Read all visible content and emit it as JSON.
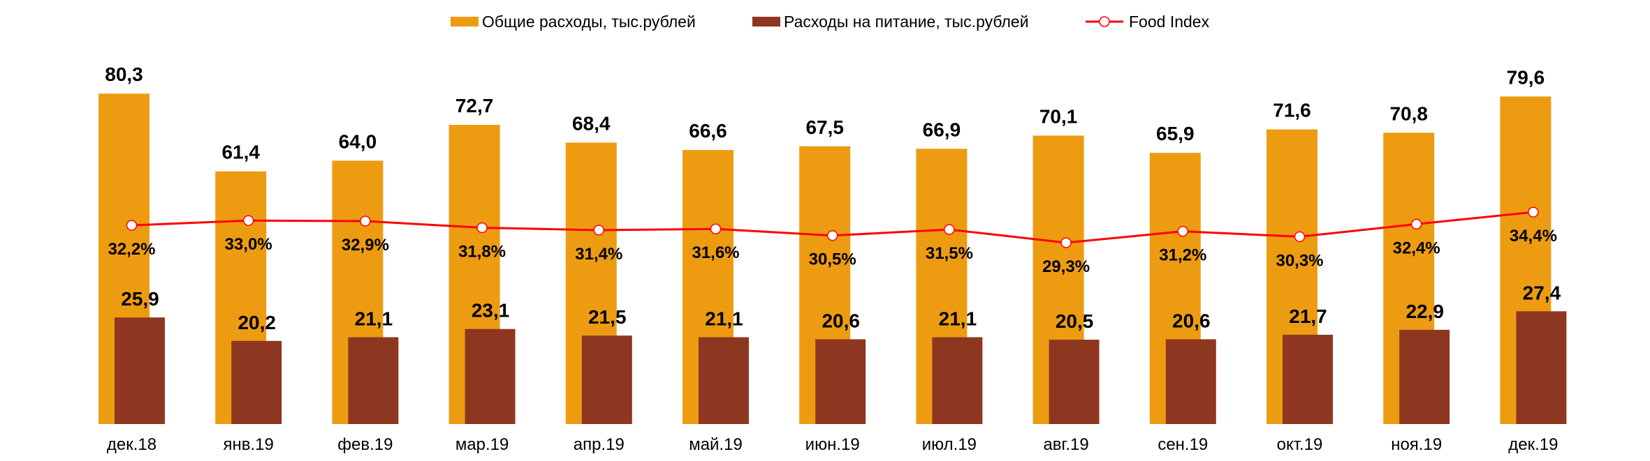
{
  "chart_data": {
    "type": "bar",
    "title": "",
    "xlabel": "",
    "ylabel": "",
    "categories": [
      "дек.18",
      "янв.19",
      "фев.19",
      "мар.19",
      "апр.19",
      "май.19",
      "июн.19",
      "июл.19",
      "авг.19",
      "сен.19",
      "окт.19",
      "ноя.19",
      "дек.19"
    ],
    "series": [
      {
        "name": "Общие расходы, тыс.рублей",
        "type": "bar",
        "color": "#ED9C11",
        "values": [
          80.3,
          61.4,
          64.0,
          72.7,
          68.4,
          66.6,
          67.5,
          66.9,
          70.1,
          65.9,
          71.6,
          70.8,
          79.6
        ],
        "labels": [
          "80,3",
          "61,4",
          "64,0",
          "72,7",
          "68,4",
          "66,6",
          "67,5",
          "66,9",
          "70,1",
          "65,9",
          "71,6",
          "70,8",
          "79,6"
        ]
      },
      {
        "name": "Расходы на питание, тыс.рублей",
        "type": "bar",
        "color": "#8E3720",
        "values": [
          25.9,
          20.2,
          21.1,
          23.1,
          21.5,
          21.1,
          20.6,
          21.1,
          20.5,
          20.6,
          21.7,
          22.9,
          27.4
        ],
        "labels": [
          "25,9",
          "20,2",
          "21,1",
          "23,1",
          "21,5",
          "21,1",
          "20,6",
          "21,1",
          "20,5",
          "20,6",
          "21,7",
          "22,9",
          "27,4"
        ]
      },
      {
        "name": "Food Index",
        "type": "line",
        "axis": "secondary",
        "color": "#FF0000",
        "unit": "%",
        "values": [
          32.2,
          33.0,
          32.9,
          31.8,
          31.4,
          31.6,
          30.5,
          31.5,
          29.3,
          31.2,
          30.3,
          32.4,
          34.4
        ],
        "labels": [
          "32,2%",
          "33,0%",
          "32,9%",
          "31,8%",
          "31,4%",
          "31,6%",
          "30,5%",
          "31,5%",
          "29,3%",
          "31,2%",
          "30,3%",
          "32,4%",
          "34,4%"
        ]
      }
    ],
    "ylim": [
      0,
      100
    ],
    "y2lim": [
      0,
      70
    ],
    "grid": false,
    "axes_visible": false,
    "legend_position": "top"
  }
}
